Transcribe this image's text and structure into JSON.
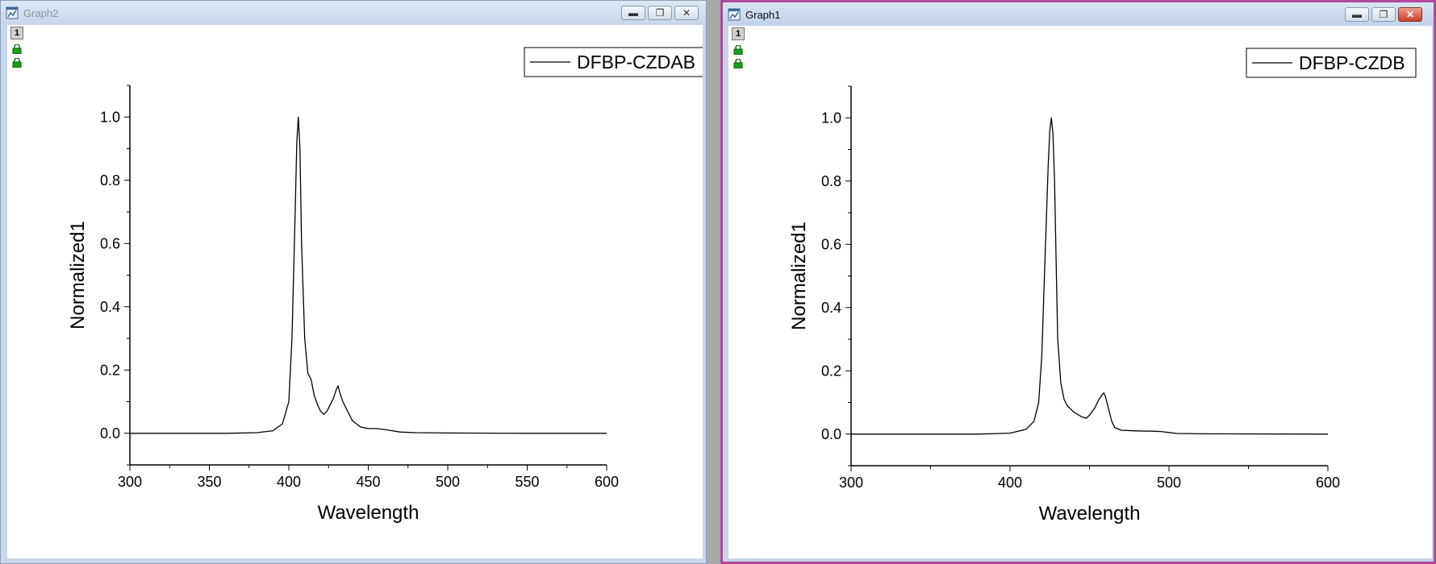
{
  "windows": [
    {
      "title": "Graph2",
      "layer_label": "1",
      "legend": "DFBP-CZDAB",
      "xlabel": "Wavelength",
      "ylabel": "Normalized1"
    },
    {
      "title": "Graph1",
      "layer_label": "1",
      "legend": "DFBP-CZDB",
      "xlabel": "Wavelength",
      "ylabel": "Normalized1"
    }
  ],
  "chart_data": [
    {
      "type": "line",
      "xlabel": "Wavelength",
      "ylabel": "Normalized1",
      "xlim": [
        300,
        600
      ],
      "ylim": [
        -0.1,
        1.1
      ],
      "xticks": [
        300,
        350,
        400,
        450,
        500,
        550,
        600
      ],
      "yticks": [
        0.0,
        0.2,
        0.4,
        0.6,
        0.8,
        1.0
      ],
      "grid": false,
      "legend_position": "top-right",
      "series": [
        {
          "name": "DFBP-CZDAB",
          "color": "#000000",
          "x": [
            300,
            360,
            380,
            390,
            396,
            400,
            402,
            404,
            405,
            406,
            407,
            408,
            410,
            412,
            414,
            416,
            418,
            420,
            422,
            424,
            426,
            428,
            430,
            431,
            432,
            434,
            436,
            440,
            445,
            450,
            455,
            460,
            465,
            470,
            480,
            500,
            550,
            600
          ],
          "y": [
            0.0,
            0.0,
            0.002,
            0.008,
            0.03,
            0.1,
            0.3,
            0.7,
            0.92,
            1.0,
            0.9,
            0.6,
            0.3,
            0.19,
            0.17,
            0.12,
            0.09,
            0.07,
            0.06,
            0.07,
            0.09,
            0.11,
            0.14,
            0.15,
            0.13,
            0.1,
            0.08,
            0.04,
            0.02,
            0.015,
            0.015,
            0.012,
            0.008,
            0.004,
            0.002,
            0.001,
            0.0,
            0.0
          ]
        }
      ]
    },
    {
      "type": "line",
      "xlabel": "Wavelength",
      "ylabel": "Normalized1",
      "xlim": [
        300,
        600
      ],
      "ylim": [
        -0.1,
        1.1
      ],
      "xticks": [
        300,
        400,
        500,
        600
      ],
      "yticks": [
        0.0,
        0.2,
        0.4,
        0.6,
        0.8,
        1.0
      ],
      "grid": false,
      "legend_position": "top-right",
      "series": [
        {
          "name": "DFBP-CZDB",
          "color": "#000000",
          "x": [
            300,
            380,
            400,
            410,
            415,
            418,
            420,
            422,
            424,
            425,
            426,
            427,
            428,
            429,
            430,
            432,
            434,
            436,
            440,
            445,
            448,
            450,
            453,
            456,
            458,
            459,
            460,
            462,
            464,
            466,
            470,
            480,
            490,
            495,
            500,
            505,
            520,
            600
          ],
          "y": [
            0.0,
            0.0,
            0.003,
            0.015,
            0.04,
            0.1,
            0.25,
            0.55,
            0.85,
            0.96,
            1.0,
            0.95,
            0.8,
            0.55,
            0.3,
            0.16,
            0.11,
            0.09,
            0.07,
            0.055,
            0.05,
            0.06,
            0.08,
            0.11,
            0.125,
            0.13,
            0.12,
            0.08,
            0.04,
            0.02,
            0.012,
            0.01,
            0.009,
            0.008,
            0.005,
            0.002,
            0.001,
            0.0
          ]
        }
      ]
    }
  ]
}
